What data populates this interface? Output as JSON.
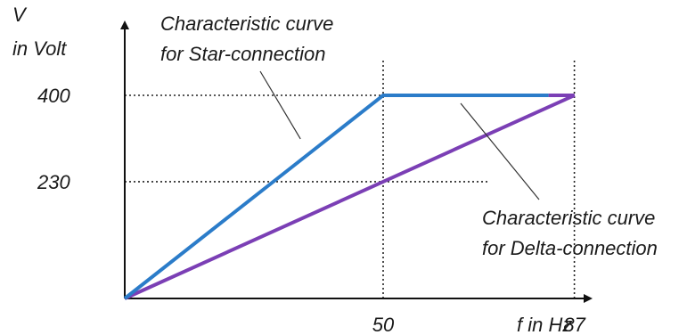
{
  "chart_data": {
    "type": "line",
    "title": "",
    "ylabel": [
      "V",
      "in Volt"
    ],
    "xlabel": "f in Hz",
    "xlim": [
      0,
      110
    ],
    "ylim": [
      0,
      460
    ],
    "x_ticks": [
      {
        "value": 50,
        "label": "50"
      },
      {
        "value": 87,
        "label": "87"
      }
    ],
    "y_ticks": [
      {
        "value": 400,
        "label": "400"
      },
      {
        "value": 230,
        "label": "230"
      }
    ],
    "grid": "dotted reference lines at the marked ticks",
    "legend": "none",
    "series": [
      {
        "key": "star",
        "color": "#2b7cc9",
        "points": [
          [
            0,
            0
          ],
          [
            50,
            400
          ],
          [
            82,
            400
          ]
        ]
      },
      {
        "key": "delta",
        "color": "#7b3fb5",
        "points": [
          [
            0,
            0
          ],
          [
            87,
            400
          ],
          [
            82,
            400
          ]
        ]
      }
    ],
    "annotations": [
      {
        "key": "star",
        "lines": [
          "Characteristic curve",
          "for Star-connection"
        ],
        "target": [
          34,
          230
        ]
      },
      {
        "key": "delta",
        "lines": [
          "Characteristic curve",
          "for Delta-connection"
        ],
        "target": [
          65,
          300
        ]
      }
    ]
  }
}
